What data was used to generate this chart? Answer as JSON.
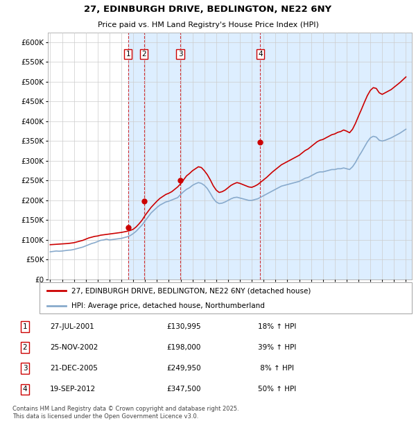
{
  "title": "27, EDINBURGH DRIVE, BEDLINGTON, NE22 6NY",
  "subtitle": "Price paid vs. HM Land Registry's House Price Index (HPI)",
  "background_color": "#ffffff",
  "plot_bg_color": "#ffffff",
  "grid_color": "#cccccc",
  "ylim": [
    0,
    625000
  ],
  "yticks": [
    0,
    50000,
    100000,
    150000,
    200000,
    250000,
    300000,
    350000,
    400000,
    450000,
    500000,
    550000,
    600000
  ],
  "ytick_labels": [
    "£0",
    "£50K",
    "£100K",
    "£150K",
    "£200K",
    "£250K",
    "£300K",
    "£350K",
    "£400K",
    "£450K",
    "£500K",
    "£550K",
    "£600K"
  ],
  "xlim_start": 1994.8,
  "xlim_end": 2025.5,
  "xtick_years": [
    1995,
    1996,
    1997,
    1998,
    1999,
    2000,
    2001,
    2002,
    2003,
    2004,
    2005,
    2006,
    2007,
    2008,
    2009,
    2010,
    2011,
    2012,
    2013,
    2014,
    2015,
    2016,
    2017,
    2018,
    2019,
    2020,
    2021,
    2022,
    2023,
    2024,
    2025
  ],
  "sale_color": "#cc0000",
  "hpi_color": "#88aacc",
  "transaction_color": "#cc0000",
  "shade_color": "#ddeeff",
  "vline_color": "#cc0000",
  "transactions": [
    {
      "date_num": 2001.57,
      "price": 130995,
      "label": "1"
    },
    {
      "date_num": 2002.9,
      "price": 198000,
      "label": "2"
    },
    {
      "date_num": 2005.97,
      "price": 249950,
      "label": "3"
    },
    {
      "date_num": 2012.72,
      "price": 347500,
      "label": "4"
    }
  ],
  "table_rows": [
    {
      "num": "1",
      "date": "27-JUL-2001",
      "price": "£130,995",
      "change": "18% ↑ HPI"
    },
    {
      "num": "2",
      "date": "25-NOV-2002",
      "price": "£198,000",
      "change": "39% ↑ HPI"
    },
    {
      "num": "3",
      "date": "21-DEC-2005",
      "price": "£249,950",
      "change": " 8% ↑ HPI"
    },
    {
      "num": "4",
      "date": "19-SEP-2012",
      "price": "£347,500",
      "change": "50% ↑ HPI"
    }
  ],
  "footer": "Contains HM Land Registry data © Crown copyright and database right 2025.\nThis data is licensed under the Open Government Licence v3.0.",
  "legend_house": "27, EDINBURGH DRIVE, BEDLINGTON, NE22 6NY (detached house)",
  "legend_hpi": "HPI: Average price, detached house, Northumberland",
  "hpi_data_years": [
    1995.0,
    1995.25,
    1995.5,
    1995.75,
    1996.0,
    1996.25,
    1996.5,
    1996.75,
    1997.0,
    1997.25,
    1997.5,
    1997.75,
    1998.0,
    1998.25,
    1998.5,
    1998.75,
    1999.0,
    1999.25,
    1999.5,
    1999.75,
    2000.0,
    2000.25,
    2000.5,
    2000.75,
    2001.0,
    2001.25,
    2001.5,
    2001.75,
    2002.0,
    2002.25,
    2002.5,
    2002.75,
    2003.0,
    2003.25,
    2003.5,
    2003.75,
    2004.0,
    2004.25,
    2004.5,
    2004.75,
    2005.0,
    2005.25,
    2005.5,
    2005.75,
    2006.0,
    2006.25,
    2006.5,
    2006.75,
    2007.0,
    2007.25,
    2007.5,
    2007.75,
    2008.0,
    2008.25,
    2008.5,
    2008.75,
    2009.0,
    2009.25,
    2009.5,
    2009.75,
    2010.0,
    2010.25,
    2010.5,
    2010.75,
    2011.0,
    2011.25,
    2011.5,
    2011.75,
    2012.0,
    2012.25,
    2012.5,
    2012.75,
    2013.0,
    2013.25,
    2013.5,
    2013.75,
    2014.0,
    2014.25,
    2014.5,
    2014.75,
    2015.0,
    2015.25,
    2015.5,
    2015.75,
    2016.0,
    2016.25,
    2016.5,
    2016.75,
    2017.0,
    2017.25,
    2017.5,
    2017.75,
    2018.0,
    2018.25,
    2018.5,
    2018.75,
    2019.0,
    2019.25,
    2019.5,
    2019.75,
    2020.0,
    2020.25,
    2020.5,
    2020.75,
    2021.0,
    2021.25,
    2021.5,
    2021.75,
    2022.0,
    2022.25,
    2022.5,
    2022.75,
    2023.0,
    2023.25,
    2023.5,
    2023.75,
    2024.0,
    2024.25,
    2024.5,
    2024.75,
    2025.0
  ],
  "hpi_data_vals": [
    70000,
    71000,
    72000,
    71500,
    72000,
    73000,
    74000,
    74500,
    76000,
    78000,
    80000,
    82000,
    85000,
    88000,
    91000,
    93000,
    96000,
    99000,
    100000,
    102000,
    100000,
    101000,
    102000,
    103000,
    104000,
    106000,
    108000,
    111000,
    116000,
    122000,
    130000,
    138000,
    148000,
    158000,
    168000,
    175000,
    182000,
    188000,
    192000,
    196000,
    198000,
    201000,
    204000,
    207000,
    215000,
    222000,
    228000,
    232000,
    238000,
    242000,
    245000,
    243000,
    238000,
    230000,
    218000,
    205000,
    196000,
    192000,
    193000,
    196000,
    200000,
    204000,
    207000,
    208000,
    206000,
    204000,
    202000,
    200000,
    200000,
    202000,
    204000,
    208000,
    212000,
    216000,
    220000,
    224000,
    228000,
    232000,
    236000,
    238000,
    240000,
    242000,
    244000,
    246000,
    248000,
    252000,
    256000,
    258000,
    262000,
    266000,
    270000,
    272000,
    272000,
    274000,
    276000,
    278000,
    278000,
    280000,
    280000,
    282000,
    280000,
    278000,
    285000,
    296000,
    310000,
    322000,
    335000,
    348000,
    358000,
    362000,
    360000,
    352000,
    350000,
    352000,
    355000,
    358000,
    362000,
    366000,
    370000,
    375000,
    380000
  ],
  "house_data_years": [
    1995.0,
    1995.25,
    1995.5,
    1995.75,
    1996.0,
    1996.25,
    1996.5,
    1996.75,
    1997.0,
    1997.25,
    1997.5,
    1997.75,
    1998.0,
    1998.25,
    1998.5,
    1998.75,
    1999.0,
    1999.25,
    1999.5,
    1999.75,
    2000.0,
    2000.25,
    2000.5,
    2000.75,
    2001.0,
    2001.25,
    2001.5,
    2001.75,
    2002.0,
    2002.25,
    2002.5,
    2002.75,
    2003.0,
    2003.25,
    2003.5,
    2003.75,
    2004.0,
    2004.25,
    2004.5,
    2004.75,
    2005.0,
    2005.25,
    2005.5,
    2005.75,
    2006.0,
    2006.25,
    2006.5,
    2006.75,
    2007.0,
    2007.25,
    2007.5,
    2007.75,
    2008.0,
    2008.25,
    2008.5,
    2008.75,
    2009.0,
    2009.25,
    2009.5,
    2009.75,
    2010.0,
    2010.25,
    2010.5,
    2010.75,
    2011.0,
    2011.25,
    2011.5,
    2011.75,
    2012.0,
    2012.25,
    2012.5,
    2012.75,
    2013.0,
    2013.25,
    2013.5,
    2013.75,
    2014.0,
    2014.25,
    2014.5,
    2014.75,
    2015.0,
    2015.25,
    2015.5,
    2015.75,
    2016.0,
    2016.25,
    2016.5,
    2016.75,
    2017.0,
    2017.25,
    2017.5,
    2017.75,
    2018.0,
    2018.25,
    2018.5,
    2018.75,
    2019.0,
    2019.25,
    2019.5,
    2019.75,
    2020.0,
    2020.25,
    2020.5,
    2020.75,
    2021.0,
    2021.25,
    2021.5,
    2021.75,
    2022.0,
    2022.25,
    2022.5,
    2022.75,
    2023.0,
    2023.25,
    2023.5,
    2023.75,
    2024.0,
    2024.25,
    2024.5,
    2024.75,
    2025.0
  ],
  "house_data_vals": [
    88000,
    88500,
    89000,
    89500,
    90000,
    90500,
    91000,
    92000,
    93000,
    95000,
    97000,
    99000,
    102000,
    105000,
    107000,
    109000,
    110000,
    112000,
    113000,
    114000,
    115000,
    116000,
    117000,
    118000,
    119000,
    120500,
    122000,
    124000,
    127000,
    133000,
    141000,
    150000,
    162000,
    172000,
    182000,
    190000,
    198000,
    205000,
    210000,
    215000,
    218000,
    222000,
    228000,
    234000,
    242000,
    252000,
    262000,
    268000,
    275000,
    280000,
    285000,
    283000,
    275000,
    265000,
    252000,
    237000,
    226000,
    220000,
    222000,
    226000,
    232000,
    238000,
    242000,
    245000,
    243000,
    240000,
    237000,
    234000,
    233000,
    236000,
    240000,
    246000,
    252000,
    258000,
    265000,
    272000,
    278000,
    284000,
    290000,
    294000,
    298000,
    302000,
    306000,
    310000,
    314000,
    320000,
    326000,
    330000,
    336000,
    342000,
    348000,
    352000,
    354000,
    358000,
    362000,
    366000,
    368000,
    372000,
    374000,
    378000,
    375000,
    371000,
    380000,
    395000,
    413000,
    430000,
    448000,
    465000,
    478000,
    485000,
    483000,
    472000,
    468000,
    472000,
    476000,
    480000,
    486000,
    492000,
    498000,
    505000,
    512000
  ]
}
